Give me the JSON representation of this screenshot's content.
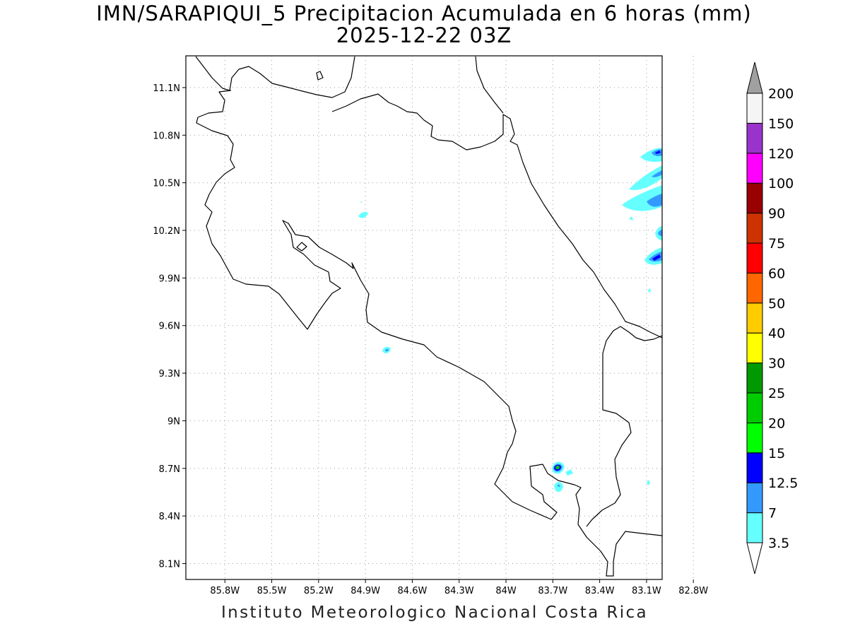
{
  "title": {
    "line1": "IMN/SARAPIQUI_5 Precipitacion Acumulada en 6 horas (mm)",
    "line2": "2025-12-22 03Z"
  },
  "footer": "Instituto Meteorologico Nacional Costa Rica",
  "map": {
    "lon_range": [
      -86.05,
      -83.0
    ],
    "lat_range": [
      8.0,
      11.3
    ],
    "lon_ticks": [
      {
        "value": -85.8,
        "label": "85.8W"
      },
      {
        "value": -85.5,
        "label": "85.5W"
      },
      {
        "value": -85.2,
        "label": "85.2W"
      },
      {
        "value": -84.9,
        "label": "84.9W"
      },
      {
        "value": -84.6,
        "label": "84.6W"
      },
      {
        "value": -84.3,
        "label": "84.3W"
      },
      {
        "value": -84.0,
        "label": "84W"
      },
      {
        "value": -83.7,
        "label": "83.7W"
      },
      {
        "value": -83.4,
        "label": "83.4W"
      },
      {
        "value": -83.1,
        "label": "83.1W"
      },
      {
        "value": -82.8,
        "label": "82.8W"
      }
    ],
    "lat_ticks": [
      {
        "value": 8.1,
        "label": "8.1N"
      },
      {
        "value": 8.4,
        "label": "8.4N"
      },
      {
        "value": 8.7,
        "label": "8.7N"
      },
      {
        "value": 9.0,
        "label": "9N"
      },
      {
        "value": 9.3,
        "label": "9.3N"
      },
      {
        "value": 9.6,
        "label": "9.6N"
      },
      {
        "value": 9.9,
        "label": "9.9N"
      },
      {
        "value": 10.2,
        "label": "10.2N"
      },
      {
        "value": 10.5,
        "label": "10.5N"
      },
      {
        "value": 10.8,
        "label": "10.8N"
      },
      {
        "value": 11.1,
        "label": "11.1N"
      }
    ],
    "grid": true
  },
  "colorbar": {
    "levels": [
      "3.5",
      "7",
      "12.5",
      "15",
      "20",
      "25",
      "30",
      "40",
      "50",
      "60",
      "75",
      "90",
      "100",
      "120",
      "150",
      "200"
    ],
    "colors": [
      "#66ffff",
      "#3399ff",
      "#0000ff",
      "#00ff00",
      "#00cc00",
      "#009900",
      "#ffff00",
      "#ffcc00",
      "#ff6600",
      "#ff0000",
      "#cc3300",
      "#990000",
      "#ff00ff",
      "#9933cc",
      "#f5f5f5"
    ],
    "under_color": "#ffffff",
    "over_color": "#a0a0a0"
  }
}
